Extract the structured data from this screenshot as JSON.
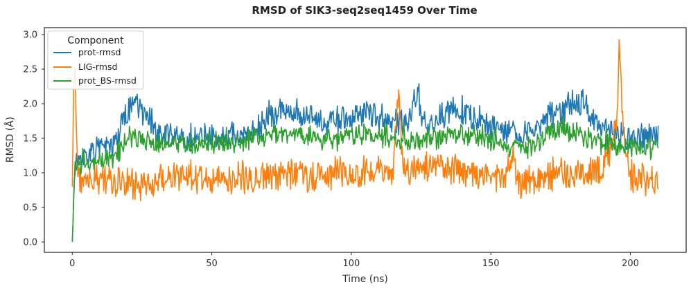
{
  "chart_data": {
    "type": "line",
    "title": "RMSD of SIK3-seq2seq1459 Over Time",
    "xlabel": "Time (ns)",
    "ylabel": "RMSD (Å)",
    "xlim": [
      -10,
      220
    ],
    "ylim": [
      -0.15,
      3.1
    ],
    "xticks": [
      0,
      50,
      100,
      150,
      200
    ],
    "xtick_labels": [
      "0",
      "50",
      "100",
      "150",
      "200"
    ],
    "yticks": [
      0.0,
      0.5,
      1.0,
      1.5,
      2.0,
      2.5,
      3.0
    ],
    "ytick_labels": [
      "0.0",
      "0.5",
      "1.0",
      "1.5",
      "2.0",
      "2.5",
      "3.0"
    ],
    "grid": false,
    "legend": {
      "title": "Component",
      "location": "upper-left",
      "entries": [
        "prot-rmsd",
        "LIG-rmsd",
        "prot_BS-rmsd"
      ]
    },
    "series": [
      {
        "name": "prot-rmsd",
        "color": "#1f77b4",
        "x": [
          0,
          1,
          2,
          5,
          8,
          10,
          12,
          15,
          18,
          20,
          22,
          25,
          28,
          30,
          35,
          40,
          45,
          50,
          55,
          60,
          65,
          68,
          70,
          75,
          80,
          85,
          90,
          95,
          100,
          105,
          110,
          115,
          118,
          120,
          124,
          125,
          130,
          135,
          140,
          145,
          150,
          155,
          160,
          165,
          170,
          175,
          180,
          183,
          185,
          190,
          195,
          200,
          205,
          210
        ],
        "values": [
          0.0,
          1.1,
          1.2,
          1.25,
          1.3,
          1.35,
          1.35,
          1.4,
          1.7,
          1.9,
          2.0,
          1.9,
          1.75,
          1.6,
          1.55,
          1.5,
          1.5,
          1.55,
          1.55,
          1.55,
          1.6,
          1.7,
          1.85,
          1.9,
          1.9,
          1.8,
          1.7,
          1.75,
          1.8,
          1.85,
          1.8,
          1.7,
          1.75,
          1.7,
          2.2,
          1.7,
          1.7,
          1.9,
          1.85,
          1.75,
          1.65,
          1.6,
          1.55,
          1.6,
          1.8,
          1.9,
          2.0,
          2.05,
          1.85,
          1.6,
          1.55,
          1.5,
          1.5,
          1.55
        ]
      },
      {
        "name": "LIG-rmsd",
        "color": "#ff7f0e",
        "x": [
          0,
          0.5,
          1,
          1.5,
          2,
          3,
          5,
          8,
          10,
          12,
          15,
          18,
          20,
          22,
          25,
          28,
          30,
          35,
          40,
          45,
          50,
          55,
          60,
          65,
          70,
          75,
          80,
          85,
          90,
          95,
          100,
          105,
          110,
          115,
          117,
          118,
          119,
          120,
          125,
          130,
          135,
          140,
          145,
          150,
          155,
          158,
          160,
          165,
          170,
          175,
          180,
          185,
          190,
          195,
          196,
          197,
          198,
          200,
          205,
          210
        ],
        "values": [
          0.8,
          2.1,
          2.5,
          1.6,
          0.9,
          0.85,
          0.9,
          0.9,
          0.95,
          0.9,
          0.85,
          0.9,
          0.85,
          0.8,
          0.85,
          0.85,
          0.9,
          0.95,
          0.95,
          0.95,
          0.9,
          0.9,
          0.95,
          0.9,
          0.95,
          0.95,
          1.0,
          0.9,
          0.95,
          1.0,
          1.0,
          1.0,
          1.05,
          1.0,
          2.3,
          1.3,
          1.1,
          1.0,
          1.05,
          1.1,
          1.05,
          1.0,
          0.95,
          0.95,
          0.9,
          1.3,
          0.8,
          0.9,
          0.95,
          1.0,
          0.95,
          1.0,
          1.05,
          1.6,
          2.8,
          2.0,
          1.3,
          0.95,
          0.9,
          0.95
        ]
      },
      {
        "name": "prot_BS-rmsd",
        "color": "#2ca02c",
        "x": [
          0,
          1,
          2,
          5,
          8,
          10,
          12,
          15,
          18,
          20,
          22,
          25,
          28,
          30,
          35,
          40,
          45,
          50,
          55,
          60,
          65,
          70,
          75,
          80,
          85,
          90,
          95,
          100,
          105,
          110,
          115,
          120,
          125,
          130,
          135,
          140,
          145,
          150,
          155,
          160,
          165,
          170,
          175,
          180,
          185,
          190,
          195,
          200,
          205,
          210
        ],
        "values": [
          0.0,
          1.05,
          1.1,
          1.15,
          1.15,
          1.15,
          1.2,
          1.2,
          1.35,
          1.55,
          1.5,
          1.45,
          1.4,
          1.4,
          1.45,
          1.4,
          1.4,
          1.45,
          1.45,
          1.45,
          1.5,
          1.55,
          1.55,
          1.6,
          1.55,
          1.5,
          1.5,
          1.55,
          1.55,
          1.55,
          1.5,
          1.45,
          1.5,
          1.5,
          1.55,
          1.55,
          1.5,
          1.45,
          1.4,
          1.35,
          1.4,
          1.55,
          1.65,
          1.6,
          1.5,
          1.45,
          1.4,
          1.4,
          1.35,
          1.4
        ]
      }
    ]
  }
}
